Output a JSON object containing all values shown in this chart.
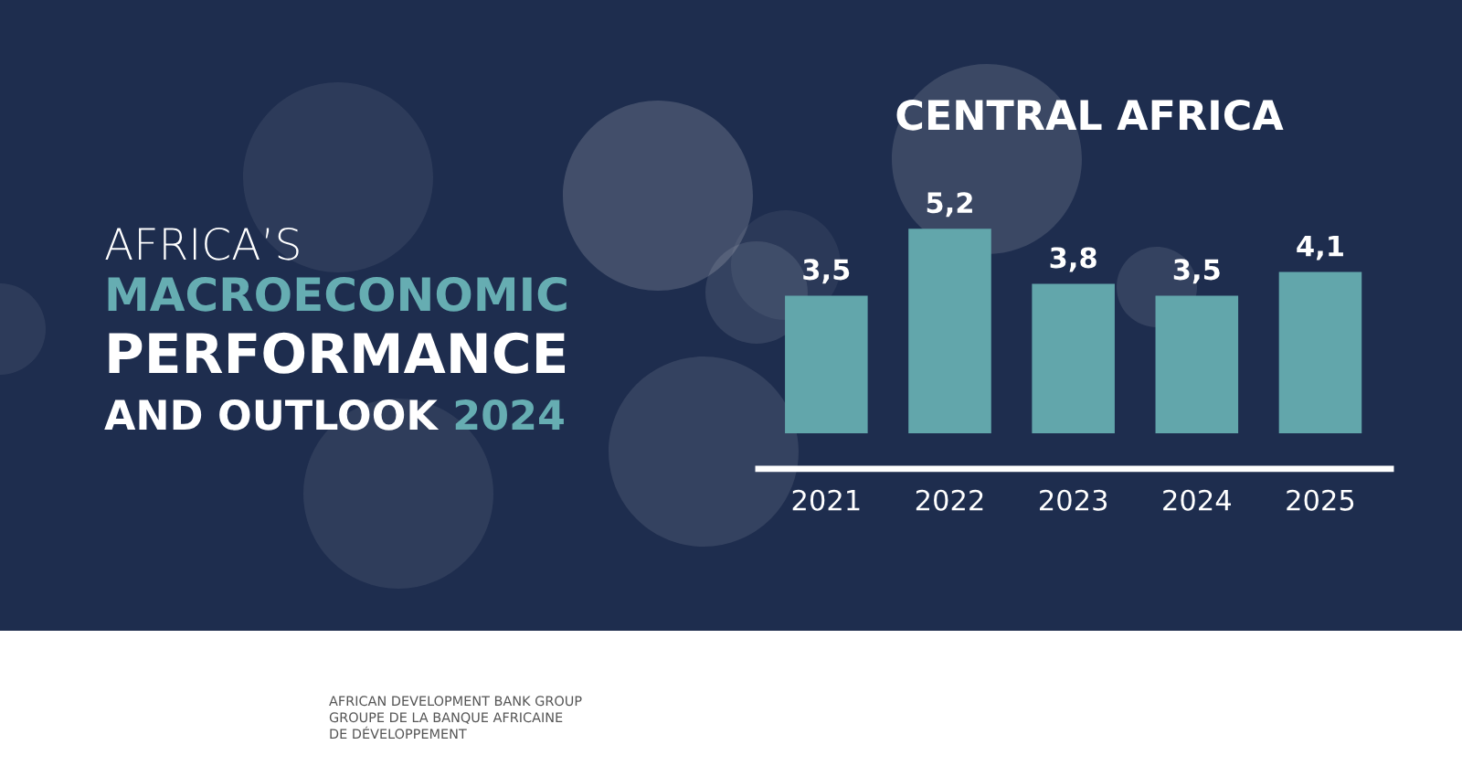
{
  "chart_data": {
    "type": "bar",
    "title": "CENTRAL AFRICA",
    "categories": [
      "2021",
      "2022",
      "2023",
      "2024",
      "2025"
    ],
    "values": [
      3.5,
      5.2,
      3.8,
      3.5,
      4.1
    ],
    "value_labels": [
      "3,5",
      "5,2",
      "3,8",
      "3,5",
      "4,1"
    ],
    "color": "#62a6ab",
    "tick_labels": "x",
    "annotations": [
      "AFRICA’S",
      "MACROECONOMIC",
      "PERFORMANCE",
      "AND OUTLOOK",
      "2024",
      "AFRICAN DEVELOPMENT BANK GROUP",
      "GROUPE DE LA BANQUE AFRICAINE",
      "DE DÉVELOPPEMENT"
    ]
  }
}
